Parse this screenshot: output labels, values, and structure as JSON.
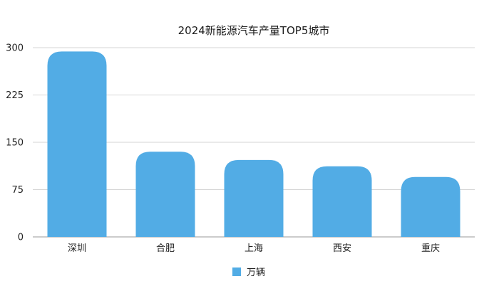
{
  "chart_data": {
    "type": "bar",
    "title": "2024新能源汽车产量TOP5城市",
    "categories": [
      "深圳",
      "合肥",
      "上海",
      "西安",
      "重庆"
    ],
    "series": [
      {
        "name": "万辆",
        "values": [
          294,
          135,
          122,
          112,
          95
        ],
        "color": "#52ACE5"
      }
    ],
    "ylim": [
      0,
      300
    ],
    "yticks": [
      0,
      75,
      150,
      225,
      300
    ],
    "grid": true,
    "legend_position": "bottom"
  }
}
